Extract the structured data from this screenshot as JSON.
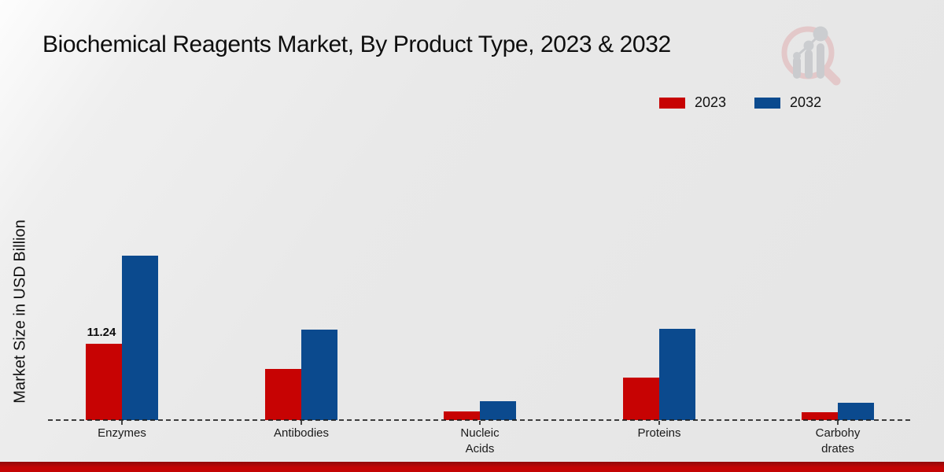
{
  "page": {
    "title": "Biochemical Reagents Market, By Product Type, 2023 & 2032"
  },
  "legend": {
    "items": [
      {
        "label": "2023",
        "color": "#c70303"
      },
      {
        "label": "2032",
        "color": "#0b4a8e"
      }
    ]
  },
  "chart_data": {
    "type": "bar",
    "title": "Biochemical Reagents Market, By Product Type, 2023 & 2032",
    "xlabel": "",
    "ylabel": "Market Size in USD Billion",
    "categories": [
      "Enzymes",
      "Antibodies",
      "Nucleic Acids",
      "Proteins",
      "Carbohydrates"
    ],
    "category_display_labels": [
      "Enzymes",
      "Antibodies",
      "Nucleic\nAcids",
      "Proteins",
      "Carbohy\ndrates"
    ],
    "series": [
      {
        "name": "2023",
        "color": "#c70303",
        "values": [
          11.24,
          7.5,
          1.3,
          6.3,
          1.2
        ],
        "data_labels": [
          "11.24",
          null,
          null,
          null,
          null
        ]
      },
      {
        "name": "2032",
        "color": "#0b4a8e",
        "values": [
          24.2,
          13.3,
          2.8,
          13.4,
          2.5
        ],
        "data_labels": [
          null,
          null,
          null,
          null,
          null
        ]
      }
    ],
    "ylim": [
      0,
      26
    ],
    "grid": false,
    "axis_line_style": "dashed-baseline-only",
    "legend_position": "top-right"
  },
  "watermark": {
    "name": "market-research-future-logo"
  }
}
